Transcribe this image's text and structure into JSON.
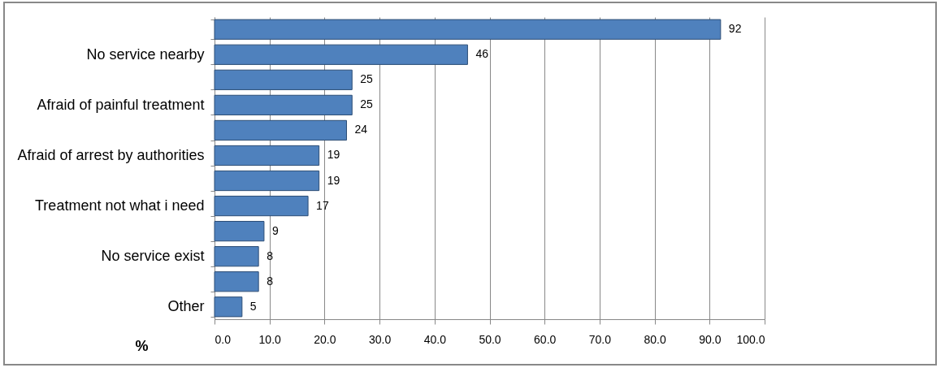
{
  "chart_data": {
    "type": "bar",
    "orientation": "horizontal",
    "xlabel": "%",
    "categories": [
      null,
      "No service nearby",
      null,
      "Afraid of painful treatment",
      null,
      "Afraid of arrest by authorities",
      null,
      "Treatment not what i need",
      null,
      "No service exist",
      null,
      "Other"
    ],
    "values": [
      92,
      46,
      25,
      25,
      24,
      19,
      19,
      17,
      9,
      8,
      8,
      5
    ],
    "color": "#4f81bd",
    "data_labels": true,
    "grid": "x",
    "xlim": [
      0,
      100
    ],
    "xticks": [
      {
        "value": 0,
        "label": "0.0"
      },
      {
        "value": 10,
        "label": "10.0"
      },
      {
        "value": 20,
        "label": "20.0"
      },
      {
        "value": 30,
        "label": "30.0"
      },
      {
        "value": 40,
        "label": "40.0"
      },
      {
        "value": 50,
        "label": "50.0"
      },
      {
        "value": 60,
        "label": "60.0"
      },
      {
        "value": 70,
        "label": "70.0"
      },
      {
        "value": 80,
        "label": "80.0"
      },
      {
        "value": 90,
        "label": "90.0"
      },
      {
        "value": 100,
        "label": "100.0"
      }
    ]
  }
}
